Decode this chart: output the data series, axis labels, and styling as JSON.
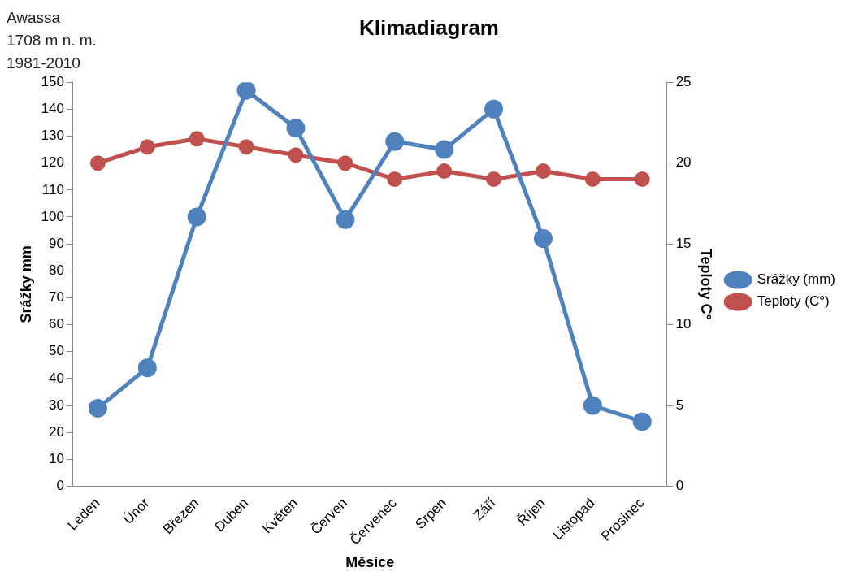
{
  "chart_data": {
    "type": "line",
    "title": "Klimadiagram",
    "annotations": [
      "Awassa",
      "1708 m n. m.",
      "1981-2010"
    ],
    "xlabel": "Měsíce",
    "ylabel": "Srážky mm",
    "y2label": "Teploty C°",
    "categories": [
      "Leden",
      "Únor",
      "Březen",
      "Duben",
      "Květen",
      "Červen",
      "Červenec",
      "Srpen",
      "Září",
      "Říjen",
      "Listopad",
      "Prosinec"
    ],
    "series": [
      {
        "name": "Srážky (mm)",
        "color": "#4f81bd",
        "values": [
          29,
          44,
          100,
          147,
          133,
          99,
          128,
          125,
          140,
          92,
          30,
          24
        ]
      },
      {
        "name": "Teploty (C°)",
        "color": "#c0504d",
        "axis": "y2",
        "values": [
          20,
          21,
          21.5,
          21,
          20.5,
          20,
          19,
          19.5,
          19,
          19.5,
          19,
          19
        ]
      }
    ],
    "ylim": [
      0,
      150
    ],
    "yticks": [
      0,
      10,
      20,
      30,
      40,
      50,
      60,
      70,
      80,
      90,
      100,
      110,
      120,
      130,
      140,
      150
    ],
    "y2lim": [
      0,
      25
    ],
    "y2ticks": [
      0,
      5,
      10,
      15,
      20,
      25
    ],
    "grid": false,
    "legend": "right",
    "marker": "circle",
    "line_style": "solid"
  }
}
